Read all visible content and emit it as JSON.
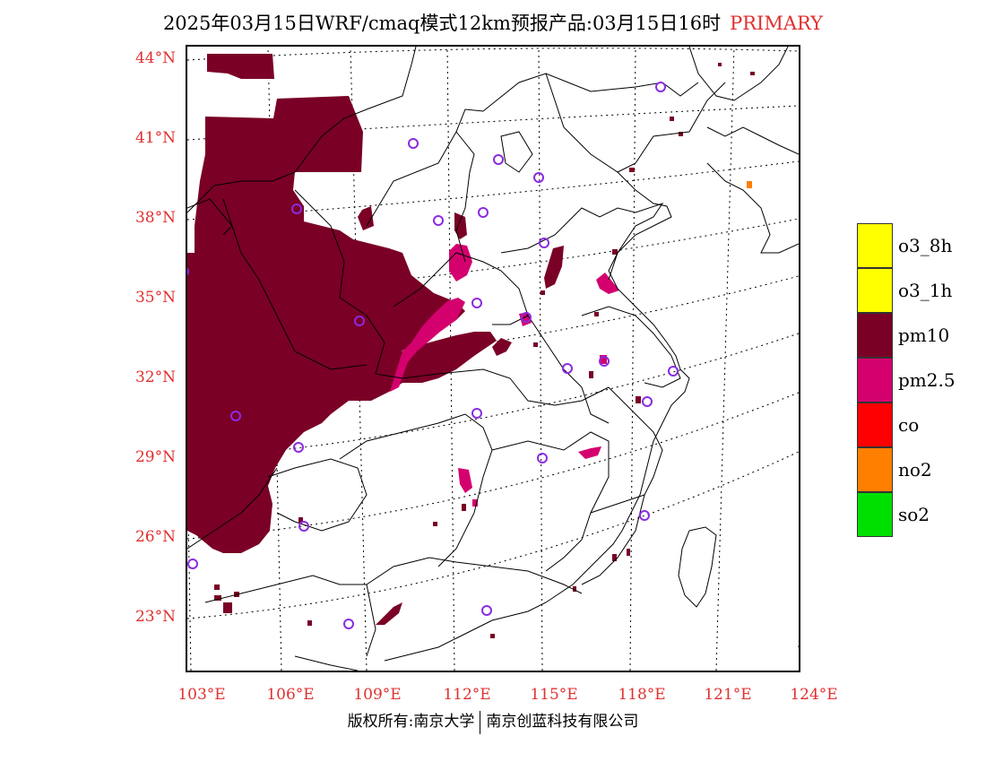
{
  "title": {
    "main": "2025年03月15日WRF/cmaq模式12km预报产品:03月15日16时",
    "tag": "PRIMARY"
  },
  "axes": {
    "lat_labels": [
      "44°N",
      "41°N",
      "38°N",
      "35°N",
      "32°N",
      "29°N",
      "26°N",
      "23°N"
    ],
    "lon_labels": [
      "103°E",
      "106°E",
      "109°E",
      "112°E",
      "115°E",
      "118°E",
      "121°E",
      "124°E"
    ]
  },
  "legend": {
    "items": [
      {
        "label": "o3_8h",
        "color": "#ffff00"
      },
      {
        "label": "o3_1h",
        "color": "#ffff00"
      },
      {
        "label": "pm10",
        "color": "#7a0026"
      },
      {
        "label": "pm2.5",
        "color": "#d4006e"
      },
      {
        "label": "co",
        "color": "#ff0000"
      },
      {
        "label": "no2",
        "color": "#ff7f00"
      },
      {
        "label": "so2",
        "color": "#00e000"
      }
    ]
  },
  "colors": {
    "pm10": "#7a0026",
    "pm25": "#d4006e",
    "no2": "#ff7f00",
    "station": "#8a2be2",
    "axis_text": "#e03030"
  },
  "footer": {
    "left": "版权所有:南京大学",
    "right": "南京创蓝科技有限公司"
  }
}
